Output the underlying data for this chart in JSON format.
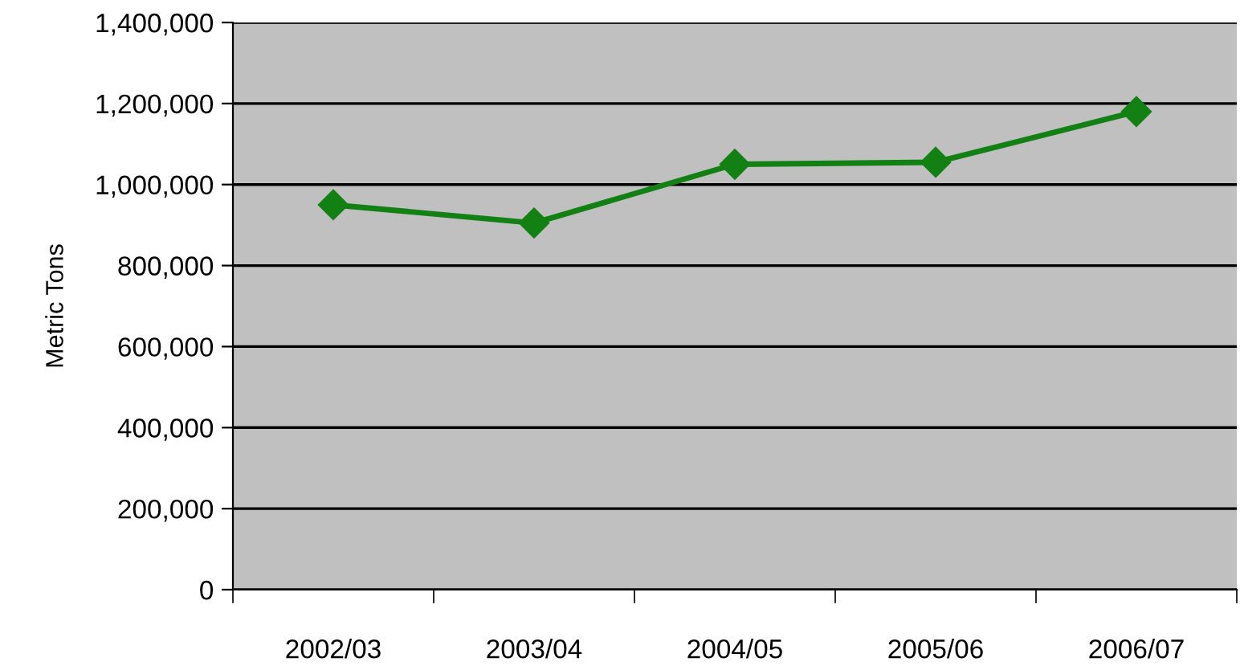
{
  "chart_data": {
    "type": "line",
    "ylabel": "Metric Tons",
    "categories": [
      "2002/03",
      "2003/04",
      "2004/05",
      "2005/06",
      "2006/07"
    ],
    "series": [
      {
        "color": "#138013",
        "values": [
          950000,
          905000,
          1050000,
          1055000,
          1180000
        ]
      }
    ],
    "ylim": [
      0,
      1400000
    ],
    "yticks": [
      {
        "value": 0,
        "label": "0"
      },
      {
        "value": 200000,
        "label": "200,000"
      },
      {
        "value": 400000,
        "label": "400,000"
      },
      {
        "value": 600000,
        "label": "600,000"
      },
      {
        "value": 800000,
        "label": "800,000"
      },
      {
        "value": 1000000,
        "label": "1,000,000"
      },
      {
        "value": 1200000,
        "label": "1,200,000"
      },
      {
        "value": 1400000,
        "label": "1,400,000"
      }
    ],
    "grid": "y",
    "marker": "diamond",
    "line_style": "solid"
  }
}
